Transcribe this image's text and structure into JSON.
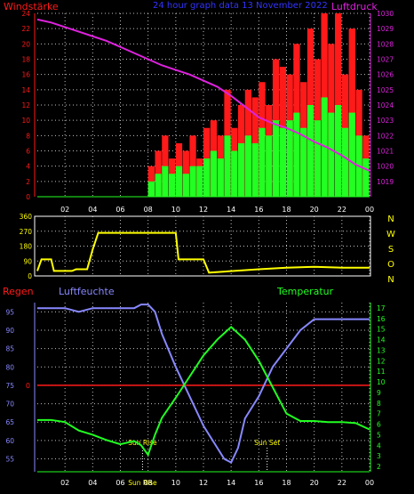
{
  "header": {
    "title": "24 hour graph data 13 November 2022",
    "left_label": "Windstärke",
    "right_label": "Luftdruck"
  },
  "colors": {
    "red": "#ff1a1a",
    "green": "#22ff22",
    "magenta": "#dd22dd",
    "blue": "#3333ff",
    "yellow": "#ffff00",
    "lightblue": "#8888ff",
    "white": "#ffffff"
  },
  "x_ticks": [
    "02",
    "04",
    "06",
    "08",
    "10",
    "12",
    "14",
    "16",
    "18",
    "20",
    "22",
    "00"
  ],
  "chart_data": [
    {
      "type": "bar",
      "name": "wind",
      "ylabel": "Windstärke",
      "y2label": "Luftdruck",
      "ylim": [
        0,
        24
      ],
      "y_ticks": [
        "0",
        "2",
        "4",
        "6",
        "8",
        "10",
        "12",
        "14",
        "16",
        "18",
        "20",
        "22",
        "24"
      ],
      "y2lim": [
        1018,
        1030
      ],
      "y2_ticks": [
        "1019",
        "1020",
        "1021",
        "1022",
        "1023",
        "1024",
        "1025",
        "1026",
        "1027",
        "1028",
        "1029",
        "1030"
      ],
      "grid": true,
      "series": [
        {
          "name": "gust",
          "x": [
            8.0,
            8.5,
            9.0,
            9.5,
            10.0,
            10.5,
            11.0,
            11.5,
            12.0,
            12.5,
            13.0,
            13.5,
            14.0,
            14.5,
            15.0,
            15.5,
            16.0,
            16.5,
            17.0,
            17.5,
            18.0,
            18.5,
            19.0,
            19.5,
            20.0,
            20.5,
            21.0,
            21.5,
            22.0,
            22.5,
            23.0,
            23.5
          ],
          "values": [
            4,
            6,
            8,
            5,
            7,
            6,
            8,
            5,
            9,
            10,
            8,
            14,
            9,
            12,
            14,
            13,
            15,
            12,
            18,
            17,
            16,
            20,
            15,
            22,
            18,
            24,
            20,
            24,
            16,
            22,
            14,
            8
          ]
        },
        {
          "name": "wind",
          "x": [
            8.0,
            8.5,
            9.0,
            9.5,
            10.0,
            10.5,
            11.0,
            11.5,
            12.0,
            12.5,
            13.0,
            13.5,
            14.0,
            14.5,
            15.0,
            15.5,
            16.0,
            16.5,
            17.0,
            17.5,
            18.0,
            18.5,
            19.0,
            19.5,
            20.0,
            20.5,
            21.0,
            21.5,
            22.0,
            22.5,
            23.0,
            23.5
          ],
          "values": [
            2,
            3,
            4,
            3,
            4,
            3,
            4,
            4,
            5,
            6,
            5,
            8,
            6,
            7,
            8,
            7,
            9,
            8,
            10,
            9,
            10,
            11,
            9,
            12,
            10,
            13,
            11,
            12,
            9,
            11,
            8,
            5
          ]
        },
        {
          "name": "Luftdruck",
          "x": [
            0,
            1,
            2,
            3,
            4,
            5,
            6,
            7,
            8,
            9,
            10,
            11,
            12,
            13,
            14,
            15,
            16,
            17,
            18,
            19,
            20,
            21,
            22,
            23,
            24
          ],
          "values": [
            1029.6,
            1029.4,
            1029.1,
            1028.8,
            1028.5,
            1028.2,
            1027.8,
            1027.4,
            1027.0,
            1026.6,
            1026.3,
            1026.0,
            1025.6,
            1025.2,
            1024.6,
            1023.9,
            1023.2,
            1022.8,
            1022.5,
            1022.1,
            1021.6,
            1021.2,
            1020.7,
            1020.1,
            1019.7
          ]
        }
      ]
    },
    {
      "type": "line",
      "name": "direction",
      "ylim": [
        0,
        360
      ],
      "y_ticks": [
        "0",
        "90",
        "180",
        "270",
        "360"
      ],
      "right_labels": [
        "N",
        "W",
        "S",
        "O",
        "N"
      ],
      "grid": true,
      "series": [
        {
          "name": "Windrichtung",
          "x": [
            0,
            0.3,
            1.0,
            1.2,
            2.5,
            2.8,
            3.6,
            3.8,
            4.0,
            4.2,
            4.4,
            6.0,
            8.0,
            8.2,
            10.0,
            10.2,
            10.6,
            11.0,
            12.0,
            12.4,
            16.0,
            18.0,
            20.0,
            22.0,
            24.0
          ],
          "values": [
            30,
            100,
            100,
            30,
            30,
            40,
            40,
            100,
            160,
            210,
            260,
            260,
            260,
            260,
            260,
            100,
            100,
            100,
            100,
            20,
            40,
            50,
            55,
            50,
            50
          ]
        }
      ]
    },
    {
      "type": "line",
      "name": "humidity-temperature",
      "left_label": "Regen",
      "mid_label": "Luftfeuchte",
      "right_label": "Temperatur",
      "ylim": [
        51.5,
        97.5
      ],
      "y_ticks": [
        "55",
        "60",
        "65",
        "70",
        "75",
        "80",
        "85",
        "90",
        "95"
      ],
      "y2lim": [
        1.5,
        17.5
      ],
      "y2_ticks": [
        "2",
        "3",
        "4",
        "5",
        "6",
        "7",
        "8",
        "9",
        "10",
        "11",
        "12",
        "13",
        "14",
        "15",
        "16",
        "17"
      ],
      "rain_label": "0",
      "rain_value": 75,
      "grid": true,
      "annotations": [
        {
          "text": "Sun Rise",
          "x": 7.6
        },
        {
          "text": "Sun Set",
          "x": 16.6
        },
        {
          "text": "Sun Rise",
          "x": 7.6
        }
      ],
      "series": [
        {
          "name": "Luftfeuchte",
          "x": [
            0,
            1,
            2,
            3,
            4,
            5,
            6,
            7,
            7.5,
            8,
            8.5,
            9,
            10,
            11,
            12,
            13,
            13.5,
            14,
            14.5,
            15,
            16,
            17,
            18,
            19,
            20,
            21,
            22,
            23,
            24
          ],
          "values": [
            96,
            96,
            96,
            95,
            96,
            96,
            96,
            96,
            97,
            97,
            95,
            89,
            80,
            72,
            64,
            58,
            55,
            54,
            58,
            66,
            72,
            80,
            85,
            90,
            93,
            93,
            93,
            93,
            93
          ]
        },
        {
          "name": "Temperatur",
          "x": [
            0,
            1,
            2,
            3,
            4,
            5,
            6,
            7,
            7.5,
            8,
            8.5,
            9,
            10,
            11,
            12,
            13,
            14,
            15,
            16,
            17,
            18,
            19,
            20,
            21,
            22,
            23,
            24
          ],
          "values": [
            6.4,
            6.4,
            6.2,
            5.4,
            5.0,
            4.5,
            4.1,
            4.4,
            4.0,
            3.1,
            5.0,
            6.6,
            8.5,
            10.5,
            12.5,
            14.0,
            15.2,
            14.0,
            12.0,
            9.5,
            7.0,
            6.3,
            6.3,
            6.2,
            6.2,
            6.1,
            5.5
          ]
        }
      ]
    }
  ]
}
